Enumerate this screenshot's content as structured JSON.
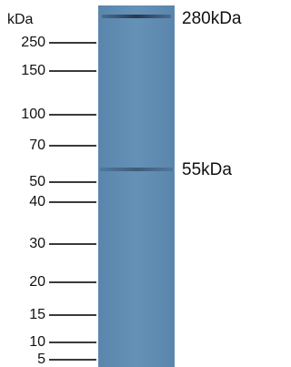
{
  "unit_label": "kDa",
  "markers": [
    "250",
    "150",
    "100",
    "70",
    "50",
    "40",
    "30",
    "20",
    "15",
    "10",
    "5"
  ],
  "bands": [
    "280kDa",
    "55kDa"
  ]
}
